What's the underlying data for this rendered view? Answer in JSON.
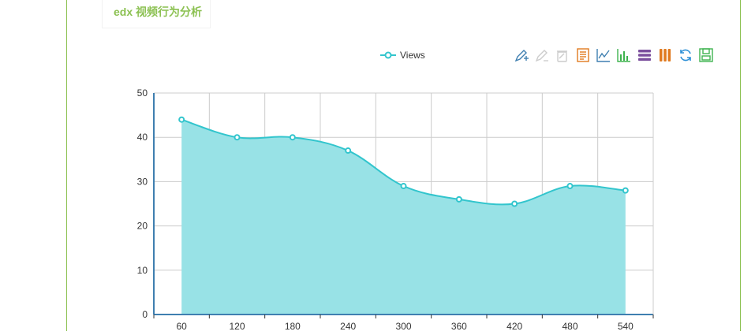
{
  "header": {
    "title": "edx 视频行为分析"
  },
  "legend": {
    "entries": [
      "Views"
    ]
  },
  "toolbox": {
    "tools": [
      {
        "name": "mark-icon"
      },
      {
        "name": "mark-undo-icon"
      },
      {
        "name": "mark-clear-icon"
      },
      {
        "name": "data-view-icon"
      },
      {
        "name": "line-chart-icon"
      },
      {
        "name": "bar-chart-icon"
      },
      {
        "name": "stack-icon"
      },
      {
        "name": "tiled-icon"
      },
      {
        "name": "restore-icon"
      },
      {
        "name": "save-image-icon"
      }
    ]
  },
  "colors": {
    "series": "#32c5cd",
    "area": "#98e2e6",
    "accent": "#8cc152",
    "axis": "#3f7fb0"
  },
  "chart_data": {
    "type": "area",
    "smooth": true,
    "x": [
      60,
      120,
      180,
      240,
      300,
      360,
      420,
      480,
      540
    ],
    "series": [
      {
        "name": "Views",
        "values": [
          44,
          40,
          40,
          37,
          29,
          26,
          25,
          29,
          28
        ]
      }
    ],
    "ylim": [
      0,
      50
    ],
    "yticks": [
      0,
      10,
      20,
      30,
      40,
      50
    ],
    "grid": true,
    "legend": "top-center"
  }
}
